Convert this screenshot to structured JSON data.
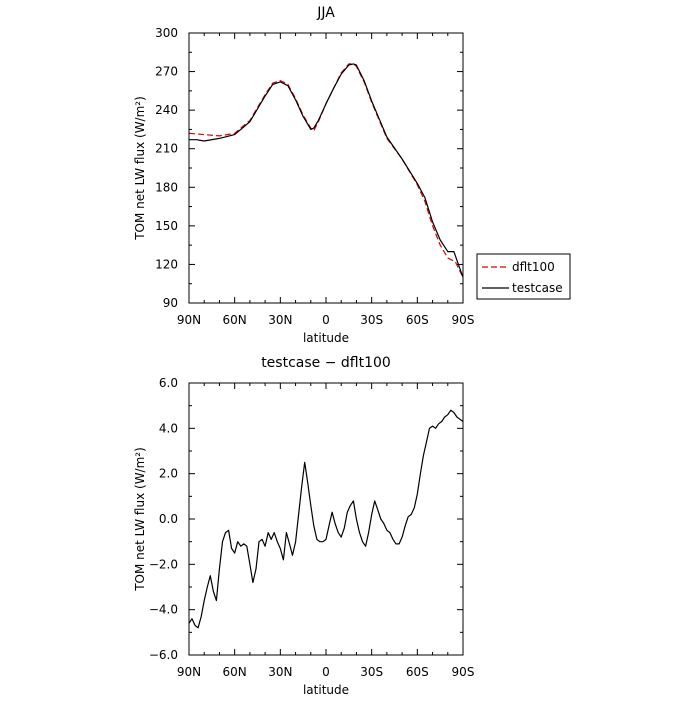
{
  "chart_data": [
    {
      "type": "line",
      "title": "JJA",
      "xlabel": "latitude",
      "ylabel": "TOM net LW flux (W/m²)",
      "xlim": [
        90,
        -90
      ],
      "ylim": [
        90,
        300
      ],
      "x_ticks": [
        {
          "value": 90,
          "label": "90N"
        },
        {
          "value": 60,
          "label": "60N"
        },
        {
          "value": 30,
          "label": "30N"
        },
        {
          "value": 0,
          "label": "0"
        },
        {
          "value": -30,
          "label": "30S"
        },
        {
          "value": -60,
          "label": "60S"
        },
        {
          "value": -90,
          "label": "90S"
        }
      ],
      "y_ticks": [
        {
          "value": 90,
          "label": "90"
        },
        {
          "value": 120,
          "label": "120"
        },
        {
          "value": 150,
          "label": "150"
        },
        {
          "value": 180,
          "label": "180"
        },
        {
          "value": 210,
          "label": "210"
        },
        {
          "value": 240,
          "label": "240"
        },
        {
          "value": 270,
          "label": "270"
        },
        {
          "value": 300,
          "label": "300"
        }
      ],
      "legend_position": "outside-right",
      "series": [
        {
          "name": "dflt100",
          "color": "#dd0000",
          "dash": "dashed",
          "x": [
            90,
            80,
            70,
            60,
            50,
            40,
            35,
            30,
            25,
            20,
            15,
            10,
            8,
            5,
            0,
            -5,
            -10,
            -15,
            -18,
            -20,
            -25,
            -30,
            -40,
            -50,
            -60,
            -65,
            -70,
            -75,
            -80,
            -85,
            -90
          ],
          "y": [
            222,
            221,
            220,
            222,
            232,
            252,
            261,
            263,
            260,
            249,
            236,
            226,
            224,
            231,
            245,
            257,
            269,
            276,
            276,
            274,
            262,
            246,
            218,
            202,
            182,
            169,
            150,
            135,
            125,
            122,
            110
          ]
        },
        {
          "name": "testcase",
          "color": "#000000",
          "dash": "solid",
          "x": [
            90,
            85,
            80,
            70,
            60,
            50,
            40,
            35,
            30,
            25,
            20,
            15,
            10,
            8,
            5,
            0,
            -5,
            -10,
            -15,
            -18,
            -20,
            -25,
            -30,
            -40,
            -50,
            -60,
            -65,
            -70,
            -75,
            -80,
            -84,
            -87,
            -90
          ],
          "y": [
            217,
            217,
            216,
            218,
            221,
            231,
            251,
            260,
            262,
            259,
            248,
            235,
            225,
            226,
            232,
            245,
            257,
            268,
            275,
            276,
            275,
            263,
            247,
            219,
            202,
            183,
            172,
            153,
            139,
            130,
            130,
            120,
            110
          ]
        }
      ]
    },
    {
      "type": "line",
      "title": "testcase − dflt100",
      "xlabel": "latitude",
      "ylabel": "TOM net LW flux (W/m²)",
      "xlim": [
        90,
        -90
      ],
      "ylim": [
        -6,
        6
      ],
      "x_ticks": [
        {
          "value": 90,
          "label": "90N"
        },
        {
          "value": 60,
          "label": "60N"
        },
        {
          "value": 30,
          "label": "30N"
        },
        {
          "value": 0,
          "label": "0"
        },
        {
          "value": -30,
          "label": "30S"
        },
        {
          "value": -60,
          "label": "60S"
        },
        {
          "value": -90,
          "label": "90S"
        }
      ],
      "y_ticks": [
        {
          "value": -6,
          "label": "−6.0"
        },
        {
          "value": -4,
          "label": "−4.0"
        },
        {
          "value": -2,
          "label": "−2.0"
        },
        {
          "value": 0,
          "label": "0.0"
        },
        {
          "value": 2,
          "label": "2.0"
        },
        {
          "value": 4,
          "label": "4.0"
        },
        {
          "value": 6,
          "label": "6.0"
        }
      ],
      "series": [
        {
          "color": "#000000",
          "dash": "solid",
          "x": [
            90,
            88,
            86,
            84,
            82,
            80,
            78,
            76,
            74,
            72,
            70,
            68,
            66,
            64,
            62,
            60,
            58,
            56,
            54,
            52,
            50,
            48,
            46,
            44,
            42,
            40,
            38,
            36,
            34,
            32,
            30,
            28,
            26,
            24,
            22,
            20,
            18,
            16,
            14,
            12,
            10,
            8,
            6,
            4,
            2,
            0,
            -2,
            -4,
            -6,
            -8,
            -10,
            -12,
            -14,
            -16,
            -18,
            -20,
            -22,
            -24,
            -26,
            -28,
            -30,
            -32,
            -34,
            -36,
            -38,
            -40,
            -42,
            -44,
            -46,
            -48,
            -50,
            -52,
            -54,
            -56,
            -58,
            -60,
            -62,
            -64,
            -66,
            -68,
            -70,
            -72,
            -74,
            -76,
            -78,
            -80,
            -82,
            -84,
            -86,
            -88,
            -90
          ],
          "y": [
            -4.6,
            -4.4,
            -4.7,
            -4.8,
            -4.3,
            -3.6,
            -3.0,
            -2.5,
            -3.2,
            -3.6,
            -2.2,
            -1.0,
            -0.6,
            -0.5,
            -1.3,
            -1.5,
            -1.0,
            -1.2,
            -1.1,
            -1.2,
            -2.0,
            -2.8,
            -2.2,
            -1.0,
            -0.9,
            -1.2,
            -0.6,
            -0.9,
            -0.6,
            -1.0,
            -1.3,
            -1.8,
            -0.6,
            -1.1,
            -1.6,
            -1.0,
            0.2,
            1.4,
            2.5,
            1.6,
            0.6,
            -0.3,
            -0.9,
            -1.0,
            -1.0,
            -0.9,
            -0.3,
            0.3,
            -0.2,
            -0.6,
            -0.8,
            -0.4,
            0.3,
            0.6,
            0.8,
            0.0,
            -0.6,
            -1.0,
            -1.2,
            -0.6,
            0.2,
            0.8,
            0.4,
            0.0,
            -0.2,
            -0.5,
            -0.6,
            -0.9,
            -1.1,
            -1.1,
            -0.8,
            -0.3,
            0.1,
            0.2,
            0.5,
            1.1,
            2.0,
            2.8,
            3.4,
            4.0,
            4.1,
            4.0,
            4.2,
            4.3,
            4.5,
            4.6,
            4.8,
            4.7,
            4.5,
            4.4,
            4.3
          ]
        }
      ]
    }
  ]
}
